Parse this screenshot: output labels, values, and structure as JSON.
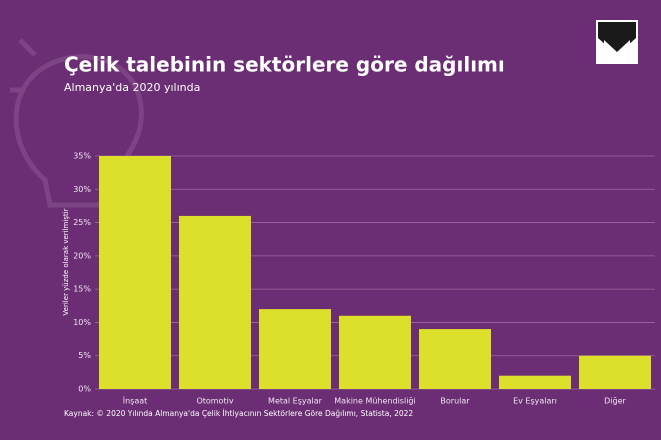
{
  "chart_data": {
    "type": "bar",
    "title": "Çelik talebinin sektörlere göre dağılımı",
    "subtitle": "Almanya'da 2020 yılında",
    "y_label": "Veriler yüzde olarak verilmiştir",
    "source": "Kaynak: © 2020 Yılında Almanya'da Çelik İhtiyacının Sektörlere Göre Dağılımı, Statista, 2022",
    "categories": [
      "İnşaat",
      "Otomotiv",
      "Metal Eşyalar",
      "Makine Mühendisliği",
      "Borular",
      "Ev Eşyaları",
      "Diğer"
    ],
    "values": [
      35,
      26,
      12,
      11,
      9,
      2,
      5
    ],
    "color": "#dde02a",
    "ylim": [
      0,
      35
    ],
    "yticks": [
      {
        "value": 0,
        "label": "0%"
      },
      {
        "value": 5,
        "label": "5%"
      },
      {
        "value": 10,
        "label": "10%"
      },
      {
        "value": 15,
        "label": "15%"
      },
      {
        "value": 20,
        "label": "20%"
      },
      {
        "value": 25,
        "label": "25%"
      },
      {
        "value": 30,
        "label": "30%"
      },
      {
        "value": 35,
        "label": "35%"
      }
    ],
    "grid": true
  }
}
